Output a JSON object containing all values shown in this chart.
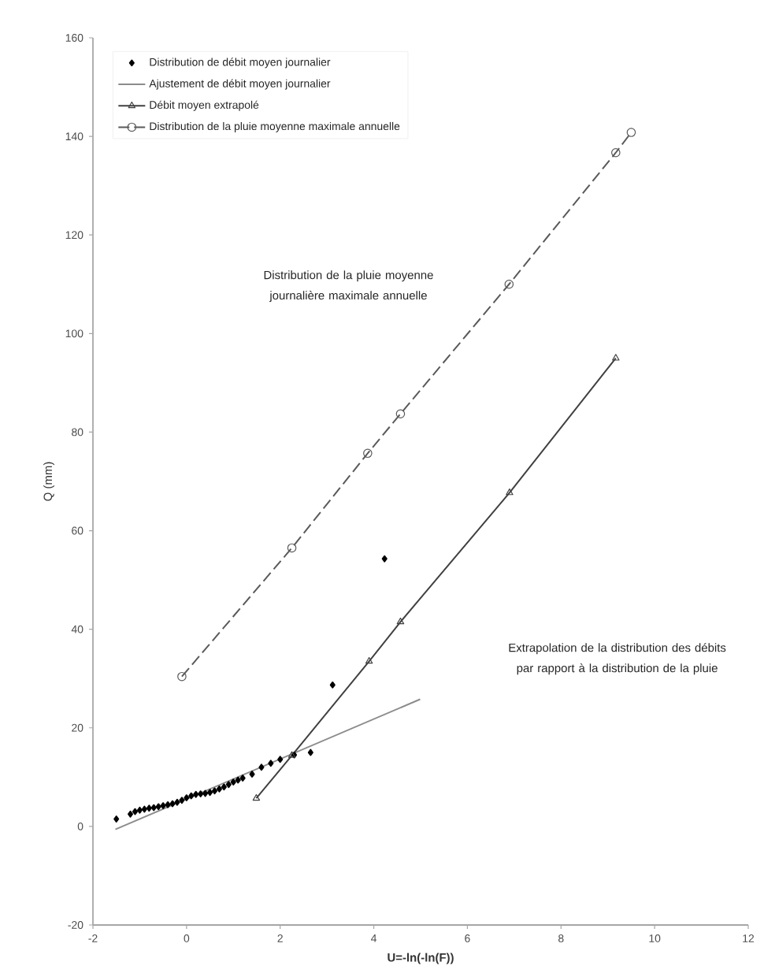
{
  "chart_data": {
    "type": "line",
    "xlabel": "U=-ln(-ln(F))",
    "ylabel": "Q (mm)",
    "xlim": [
      -2,
      12
    ],
    "xticks": [
      -2,
      0,
      2,
      4,
      6,
      8,
      10,
      12
    ],
    "ylim": [
      -20,
      160
    ],
    "yticks": [
      -20,
      0,
      20,
      40,
      60,
      80,
      100,
      120,
      140,
      160
    ],
    "legend": "top left",
    "series": [
      {
        "name": "Distribution de débit moyen journalier",
        "type": "scatter",
        "marker": "diamond",
        "color": "#000000",
        "x": [
          -1.5,
          -1.2,
          -1.1,
          -1.0,
          -0.9,
          -0.8,
          -0.7,
          -0.6,
          -0.5,
          -0.4,
          -0.3,
          -0.2,
          -0.1,
          0.0,
          0.1,
          0.2,
          0.3,
          0.4,
          0.5,
          0.6,
          0.7,
          0.8,
          0.9,
          1.0,
          1.1,
          1.2,
          1.4,
          1.6,
          1.8,
          2.0,
          2.3,
          2.65,
          3.12,
          4.23
        ],
        "values": [
          1.5,
          2.5,
          3.0,
          3.3,
          3.5,
          3.7,
          3.8,
          4.0,
          4.2,
          4.4,
          4.6,
          4.9,
          5.3,
          5.8,
          6.2,
          6.5,
          6.6,
          6.7,
          6.9,
          7.2,
          7.6,
          8.0,
          8.5,
          9.0,
          9.4,
          9.8,
          10.6,
          12.0,
          12.8,
          13.6,
          14.5,
          15.0,
          28.7,
          54.3
        ]
      },
      {
        "name": "Ajustement de débit moyen journalier",
        "marker": "none",
        "line_style": "solid",
        "color": "#8c8c8c",
        "x": [
          -1.52,
          4.99
        ],
        "values": [
          -0.6,
          25.8
        ]
      },
      {
        "name": "Débit  moyen extrapolé",
        "marker": "triangle",
        "line_style": "solid",
        "color": "#404040",
        "x": [
          1.49,
          2.25,
          3.9,
          4.57,
          6.9,
          9.17
        ],
        "values": [
          5.7,
          14.4,
          33.5,
          41.5,
          67.7,
          95.0
        ]
      },
      {
        "name": "Distribution de la pluie moyenne maximale annuelle",
        "marker": "circle",
        "line_style": "dashed",
        "color": "#595959",
        "x": [
          -0.1,
          2.25,
          3.87,
          4.57,
          6.89,
          9.17,
          9.5
        ],
        "values": [
          30.4,
          56.5,
          75.7,
          83.7,
          110.0,
          136.7,
          140.8
        ]
      }
    ],
    "annotations": [
      "Distribution de la pluie moyenne journalière maximale annuelle",
      "Extrapolation de la distribution des débits par rapport à la distribution de la pluie"
    ]
  }
}
